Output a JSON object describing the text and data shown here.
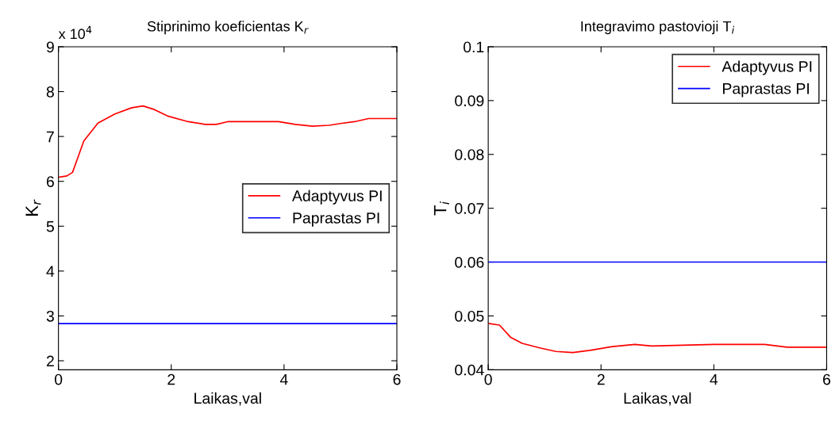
{
  "chart_data": [
    {
      "type": "line",
      "title": "Stiprinimo koeficientas K$_{r}$",
      "xlabel": "Laikas,val",
      "ylabel": "K$_{r}$",
      "annotations": [
        "x 10$^{4}$"
      ],
      "xlim": [
        0,
        6
      ],
      "xticks": [
        0,
        2,
        4,
        6
      ],
      "ylim": [
        1.8,
        9
      ],
      "yticks": [
        2,
        3,
        4,
        5,
        6,
        7,
        8,
        9
      ],
      "legend": "center right",
      "grid": false,
      "series": [
        {
          "name": "Adaptyvus PI",
          "color": "#ff0000",
          "x": [
            0,
            0.15,
            0.25,
            0.45,
            0.7,
            1.0,
            1.3,
            1.5,
            1.7,
            1.95,
            2.3,
            2.6,
            2.8,
            3.0,
            3.9,
            4.2,
            4.5,
            4.8,
            5.0,
            5.25,
            5.5,
            6.0
          ],
          "values": [
            6.09,
            6.12,
            6.2,
            6.9,
            7.3,
            7.5,
            7.64,
            7.68,
            7.6,
            7.45,
            7.33,
            7.27,
            7.27,
            7.33,
            7.33,
            7.27,
            7.23,
            7.25,
            7.29,
            7.33,
            7.4,
            7.4
          ]
        },
        {
          "name": "Paprastas PI",
          "color": "#0000ff",
          "x": [
            0,
            6
          ],
          "values": [
            2.83,
            2.83
          ]
        }
      ]
    },
    {
      "type": "line",
      "title": "Integravimo pastovioji T$_{i}$",
      "xlabel": "Laikas,val",
      "ylabel": "T$_{i}$",
      "xlim": [
        0,
        6
      ],
      "xticks": [
        0,
        2,
        4,
        6
      ],
      "ylim": [
        0.04,
        0.1
      ],
      "yticks": [
        0.04,
        0.05,
        0.06,
        0.07,
        0.08,
        0.09,
        0.1
      ],
      "legend": "top right",
      "grid": false,
      "series": [
        {
          "name": "Adaptyvus PI",
          "color": "#ff0000",
          "x": [
            0,
            0.2,
            0.4,
            0.6,
            0.9,
            1.2,
            1.5,
            1.8,
            2.2,
            2.6,
            2.9,
            4.0,
            4.9,
            5.3,
            6.0
          ],
          "values": [
            0.0486,
            0.0483,
            0.046,
            0.0449,
            0.0441,
            0.0434,
            0.0432,
            0.0436,
            0.0443,
            0.0447,
            0.0444,
            0.0447,
            0.0447,
            0.0442,
            0.0442
          ]
        },
        {
          "name": "Paprastas PI",
          "color": "#0000ff",
          "x": [
            0,
            6
          ],
          "values": [
            0.06,
            0.06
          ]
        }
      ]
    }
  ]
}
